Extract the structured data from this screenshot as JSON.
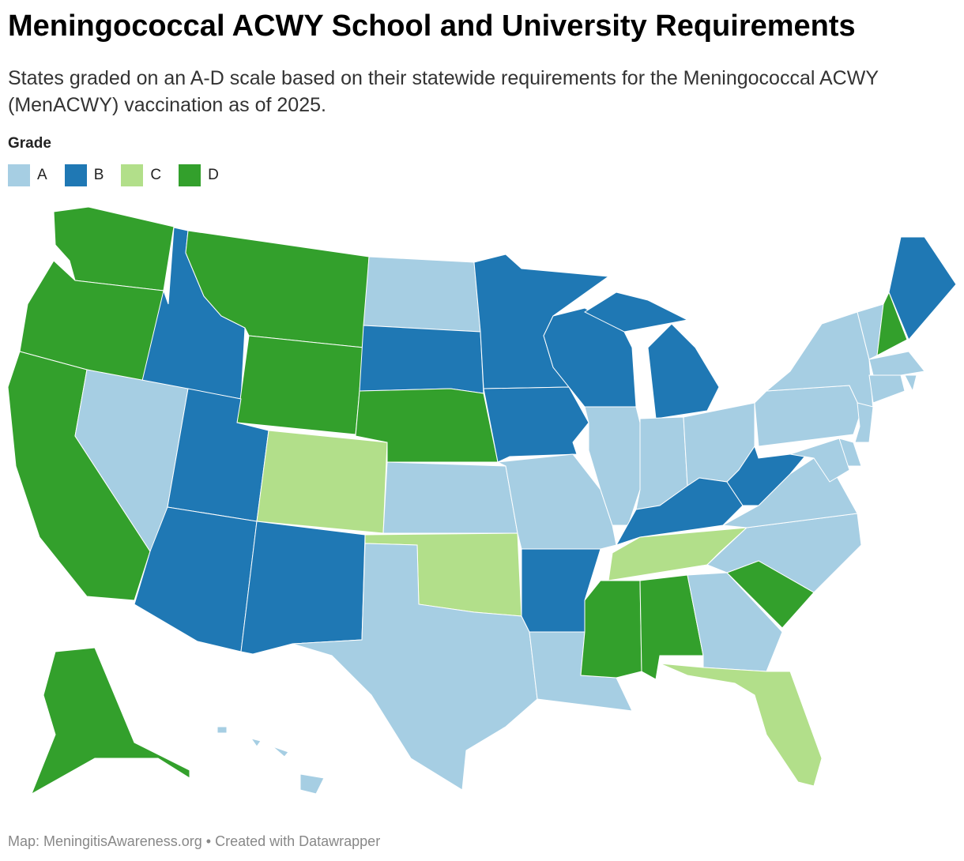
{
  "title": "Meningococcal ACWY School and University Requirements",
  "subtitle": "States graded on an A-D scale based on their statewide requirements for the Meningococcal ACWY (MenACWY) vaccination as of 2025.",
  "legend": {
    "title": "Grade",
    "items": [
      {
        "label": "A",
        "color": "#a6cee3"
      },
      {
        "label": "B",
        "color": "#1f78b4"
      },
      {
        "label": "C",
        "color": "#b2df8a"
      },
      {
        "label": "D",
        "color": "#33a02c"
      }
    ]
  },
  "regions": [
    "D",
    "D",
    "D",
    "B",
    "A",
    "D",
    "D",
    "B",
    "B",
    "C",
    "B",
    "A",
    "B",
    "D",
    "A",
    "C",
    "A",
    "B",
    "B",
    "A",
    "B",
    "A",
    "B",
    "B",
    "A",
    "A",
    "A",
    "B",
    "C",
    "D",
    "D",
    "A",
    "C",
    "D",
    "A",
    "A",
    "B",
    "A",
    "A",
    "A",
    "D",
    "B",
    "A",
    "A",
    "A",
    "A",
    "A",
    "A",
    "D",
    "A"
  ],
  "footer": "Map: MeningitisAwareness.org • Created with Datawrapper"
}
